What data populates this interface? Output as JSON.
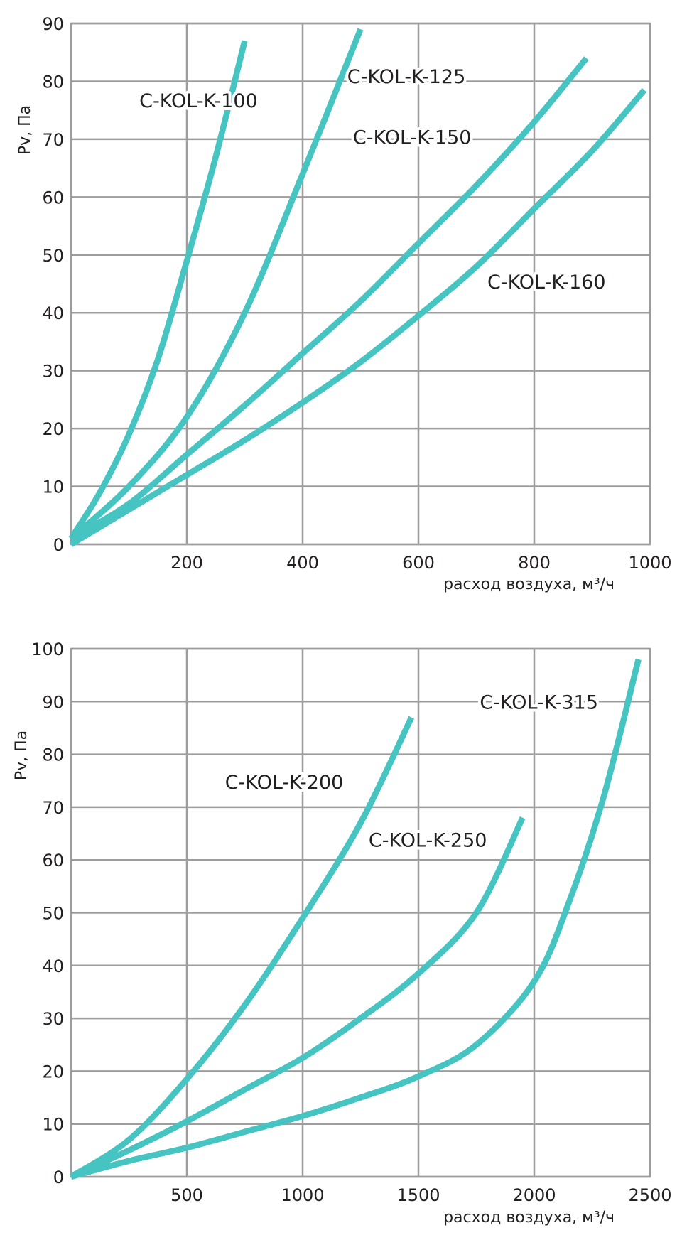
{
  "chart_data": [
    {
      "type": "line",
      "xlabel": "расход воздуха, м³/ч",
      "ylabel": "Pv, Па",
      "xlim": [
        0,
        1000
      ],
      "ylim": [
        0,
        90
      ],
      "x_ticks": [
        {
          "value": 200,
          "label": "200"
        },
        {
          "value": 400,
          "label": "400"
        },
        {
          "value": 600,
          "label": "600"
        },
        {
          "value": 800,
          "label": "800"
        },
        {
          "value": 1000,
          "label": "1000"
        }
      ],
      "y_ticks": [
        {
          "value": 0,
          "label": "0"
        },
        {
          "value": 10,
          "label": "10"
        },
        {
          "value": 20,
          "label": "20"
        },
        {
          "value": 30,
          "label": "30"
        },
        {
          "value": 40,
          "label": "40"
        },
        {
          "value": 50,
          "label": "50"
        },
        {
          "value": 60,
          "label": "60"
        },
        {
          "value": 70,
          "label": "70"
        },
        {
          "value": 80,
          "label": "80"
        },
        {
          "value": 90,
          "label": "90"
        }
      ],
      "grid": true,
      "line_color": "#45c4c2",
      "series": [
        {
          "name": "C-KOL-K-100",
          "points": [
            [
              0,
              1
            ],
            [
              50,
              9
            ],
            [
              100,
              19
            ],
            [
              150,
              32
            ],
            [
              200,
              49
            ],
            [
              250,
              67
            ],
            [
              300,
              87
            ]
          ]
        },
        {
          "name": "C-KOL-K-125",
          "points": [
            [
              0,
              1
            ],
            [
              100,
              10
            ],
            [
              200,
              22
            ],
            [
              300,
              40
            ],
            [
              400,
              64
            ],
            [
              500,
              89
            ]
          ]
        },
        {
          "name": "C-KOL-K-150",
          "points": [
            [
              0,
              1
            ],
            [
              100,
              7
            ],
            [
              200,
              15.5
            ],
            [
              300,
              24
            ],
            [
              400,
              33
            ],
            [
              500,
              42
            ],
            [
              600,
              52
            ],
            [
              700,
              62
            ],
            [
              800,
              73
            ],
            [
              890,
              84
            ]
          ]
        },
        {
          "name": "C-KOL-K-160",
          "points": [
            [
              0,
              0
            ],
            [
              100,
              6
            ],
            [
              200,
              12
            ],
            [
              300,
              18
            ],
            [
              400,
              24.5
            ],
            [
              500,
              31.5
            ],
            [
              600,
              39.5
            ],
            [
              700,
              48
            ],
            [
              800,
              58
            ],
            [
              900,
              68
            ],
            [
              990,
              78.5
            ]
          ]
        }
      ],
      "series_labels": [
        {
          "text": "C-KOL-K-100",
          "x": 118,
          "y": 75.5
        },
        {
          "text": "C-KOL-K-125",
          "x": 477,
          "y": 79.7
        },
        {
          "text": "C-KOL-K-150",
          "x": 487,
          "y": 69.2
        },
        {
          "text": "C-KOL-K-160",
          "x": 719,
          "y": 44.2
        }
      ]
    },
    {
      "type": "line",
      "xlabel": "расход воздуха, м³/ч",
      "ylabel": "Pv, Па",
      "xlim": [
        0,
        2500
      ],
      "ylim": [
        0,
        100
      ],
      "x_ticks": [
        {
          "value": 500,
          "label": "500"
        },
        {
          "value": 1000,
          "label": "1000"
        },
        {
          "value": 1500,
          "label": "1500"
        },
        {
          "value": 2000,
          "label": "2000"
        },
        {
          "value": 2500,
          "label": "2500"
        }
      ],
      "y_ticks": [
        {
          "value": 0,
          "label": "0"
        },
        {
          "value": 10,
          "label": "10"
        },
        {
          "value": 20,
          "label": "20"
        },
        {
          "value": 30,
          "label": "30"
        },
        {
          "value": 40,
          "label": "40"
        },
        {
          "value": 50,
          "label": "50"
        },
        {
          "value": 60,
          "label": "60"
        },
        {
          "value": 70,
          "label": "70"
        },
        {
          "value": 80,
          "label": "80"
        },
        {
          "value": 90,
          "label": "90"
        },
        {
          "value": 100,
          "label": "100"
        }
      ],
      "grid": true,
      "line_color": "#45c4c2",
      "series": [
        {
          "name": "C-KOL-K-200",
          "points": [
            [
              0,
              0
            ],
            [
              250,
              7
            ],
            [
              500,
              18.5
            ],
            [
              750,
              32.5
            ],
            [
              1000,
              49
            ],
            [
              1250,
              67
            ],
            [
              1470,
              87
            ]
          ]
        },
        {
          "name": "C-KOL-K-250",
          "points": [
            [
              0,
              0
            ],
            [
              250,
              5
            ],
            [
              500,
              10.5
            ],
            [
              750,
              16.5
            ],
            [
              1000,
              22.5
            ],
            [
              1250,
              30
            ],
            [
              1500,
              38.5
            ],
            [
              1750,
              50
            ],
            [
              1950,
              68
            ]
          ]
        },
        {
          "name": "C-KOL-K-315",
          "points": [
            [
              0,
              0
            ],
            [
              250,
              3
            ],
            [
              500,
              5.5
            ],
            [
              750,
              8.5
            ],
            [
              1000,
              11.5
            ],
            [
              1250,
              15
            ],
            [
              1500,
              19
            ],
            [
              1750,
              25
            ],
            [
              2000,
              37
            ],
            [
              2150,
              52
            ],
            [
              2300,
              72
            ],
            [
              2450,
              98
            ]
          ]
        }
      ],
      "series_labels": [
        {
          "text": "C-KOL-K-200",
          "x": 665,
          "y": 73.5
        },
        {
          "text": "C-KOL-K-250",
          "x": 1285,
          "y": 62.5
        },
        {
          "text": "C-KOL-K-315",
          "x": 1765,
          "y": 88.6
        }
      ]
    }
  ]
}
